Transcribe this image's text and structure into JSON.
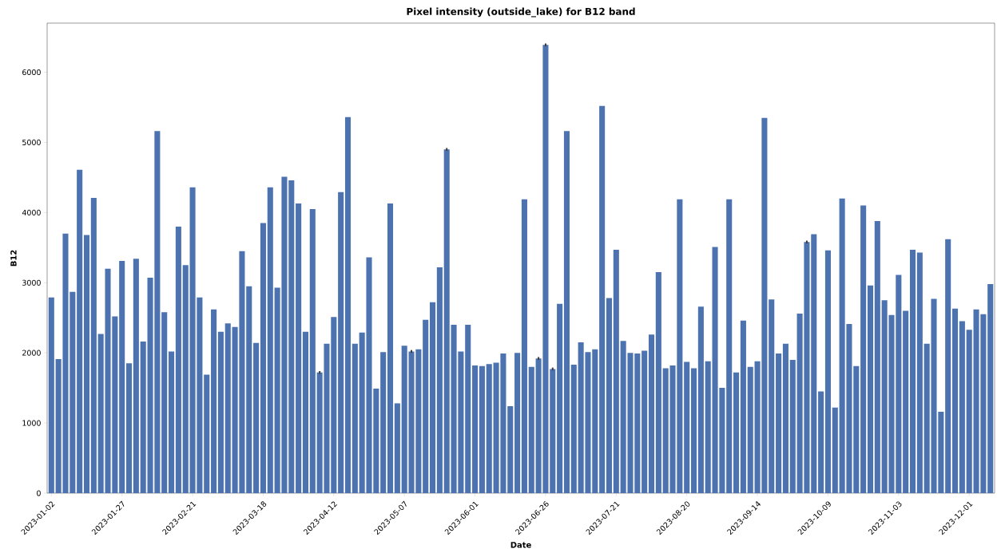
{
  "chart_data": {
    "type": "bar",
    "title": "Pixel intensity (outside_lake) for B12 band",
    "xlabel": "Date",
    "ylabel": "B12",
    "color": "#4c72b0",
    "categories": [
      "2023-01-02",
      null,
      null,
      null,
      null,
      null,
      null,
      null,
      null,
      null,
      "2023-01-27",
      null,
      null,
      null,
      null,
      null,
      null,
      null,
      null,
      null,
      "2023-02-21",
      null,
      null,
      null,
      null,
      null,
      null,
      null,
      null,
      null,
      "2023-03-18",
      null,
      null,
      null,
      null,
      null,
      null,
      null,
      null,
      null,
      "2023-04-12",
      null,
      null,
      null,
      null,
      null,
      null,
      null,
      null,
      null,
      "2023-05-07",
      null,
      null,
      null,
      null,
      null,
      null,
      null,
      null,
      null,
      "2023-06-01",
      null,
      null,
      null,
      null,
      null,
      null,
      null,
      null,
      null,
      "2023-06-26",
      null,
      null,
      null,
      null,
      null,
      null,
      null,
      null,
      null,
      "2023-07-21",
      null,
      null,
      null,
      null,
      null,
      null,
      null,
      null,
      null,
      "2023-08-20",
      null,
      null,
      null,
      null,
      null,
      null,
      null,
      null,
      null,
      "2023-09-14",
      null,
      null,
      null,
      null,
      null,
      null,
      null,
      null,
      null,
      "2023-10-09",
      null,
      null,
      null,
      null,
      null,
      null,
      null,
      null,
      null,
      "2023-11-03",
      null,
      null,
      null,
      null,
      null,
      null,
      null,
      null,
      null,
      "2023-12-01",
      null,
      null,
      null
    ],
    "values": [
      2790,
      1910,
      3700,
      2870,
      4610,
      3680,
      4210,
      2270,
      3200,
      2520,
      3310,
      1850,
      3340,
      2160,
      3070,
      5160,
      2580,
      2020,
      3800,
      3250,
      4360,
      2790,
      1690,
      2620,
      2300,
      2420,
      2370,
      3450,
      2950,
      2140,
      3850,
      4360,
      2930,
      4510,
      4460,
      4130,
      2300,
      4050,
      1720,
      2130,
      2510,
      4290,
      5360,
      2130,
      2290,
      3360,
      1490,
      2010,
      4130,
      1280,
      2100,
      2020,
      2050,
      2470,
      2720,
      3220,
      4900,
      2400,
      2020,
      2400,
      1820,
      1810,
      1840,
      1860,
      1990,
      1240,
      2000,
      4190,
      1800,
      1920,
      6390,
      1770,
      2700,
      5160,
      1830,
      2150,
      2010,
      2050,
      5520,
      2780,
      3470,
      2170,
      2000,
      1990,
      2030,
      2260,
      3150,
      1780,
      1820,
      4190,
      1870,
      1780,
      2660,
      1880,
      3510,
      1500,
      4190,
      1720,
      2460,
      1800,
      1880,
      5350,
      2760,
      1990,
      2130,
      1900,
      2560,
      3580,
      3690,
      1450,
      3460,
      1220,
      4200,
      2410,
      1810,
      4100,
      2960,
      3880,
      2750,
      2540,
      3110,
      2600,
      3470,
      3430,
      2130,
      2770,
      1160,
      3620,
      2630,
      2450,
      2330,
      2620,
      2550,
      2980
    ],
    "errors": [
      null,
      null,
      null,
      null,
      null,
      null,
      null,
      null,
      null,
      null,
      null,
      null,
      null,
      null,
      null,
      null,
      null,
      null,
      null,
      null,
      null,
      null,
      null,
      null,
      null,
      null,
      null,
      null,
      null,
      null,
      null,
      null,
      null,
      null,
      null,
      null,
      null,
      null,
      20,
      null,
      null,
      null,
      null,
      null,
      null,
      null,
      null,
      null,
      null,
      null,
      null,
      20,
      null,
      null,
      null,
      null,
      20,
      null,
      null,
      null,
      null,
      null,
      null,
      null,
      null,
      null,
      null,
      null,
      null,
      20,
      20,
      20,
      null,
      null,
      null,
      null,
      null,
      null,
      null,
      null,
      null,
      null,
      null,
      null,
      null,
      null,
      null,
      null,
      null,
      null,
      null,
      null,
      null,
      null,
      null,
      null,
      null,
      null,
      null,
      null,
      null,
      null,
      null,
      null,
      null,
      null,
      null,
      20,
      null,
      null,
      null,
      null,
      null,
      null,
      null,
      null,
      null,
      null,
      null,
      null,
      null,
      null,
      null,
      null,
      null,
      null,
      null,
      null,
      null,
      null,
      null,
      null,
      null,
      null
    ],
    "ylim": [
      0,
      6700
    ],
    "yticks": [
      0,
      1000,
      2000,
      3000,
      4000,
      5000,
      6000
    ]
  }
}
